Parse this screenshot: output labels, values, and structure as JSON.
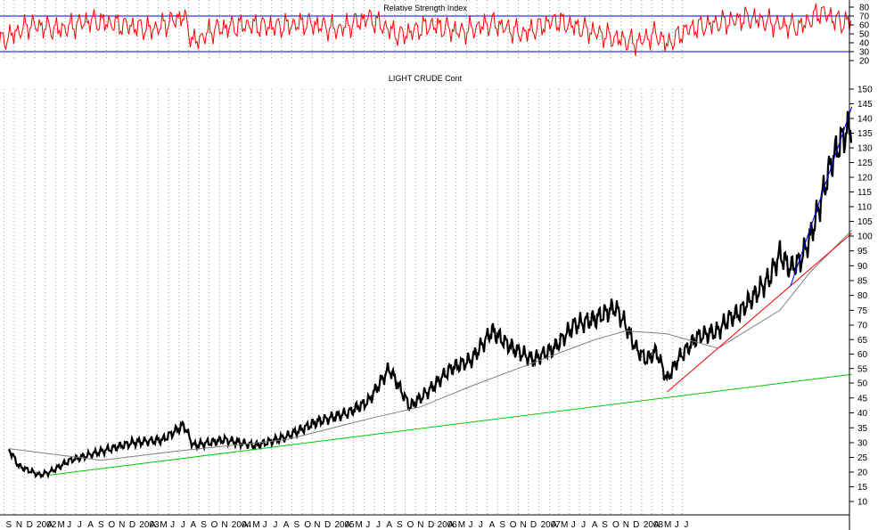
{
  "chart_data": [
    {
      "type": "line",
      "title": "Relative Strength Index",
      "ylim": [
        20,
        88
      ],
      "y_ticks": [
        20,
        30,
        40,
        50,
        60,
        70,
        80
      ],
      "reference_lines": [
        70,
        30
      ],
      "series": [
        {
          "color": "#ff0000",
          "x": [
            "2001-08",
            "2001-11",
            "2002-02",
            "2002-05",
            "2002-08",
            "2002-11",
            "2003-02",
            "2003-03",
            "2003-05",
            "2003-08",
            "2003-11",
            "2004-02",
            "2004-05",
            "2004-08",
            "2004-11",
            "2005-02",
            "2005-05",
            "2005-08",
            "2005-11",
            "2006-02",
            "2006-05",
            "2006-08",
            "2006-10",
            "2006-12",
            "2007-01",
            "2007-03",
            "2007-06",
            "2007-09",
            "2007-12",
            "2008-02",
            "2008-04",
            "2008-06",
            "2008-07"
          ],
          "values": [
            40,
            60,
            55,
            65,
            60,
            55,
            70,
            40,
            55,
            60,
            58,
            62,
            55,
            68,
            48,
            60,
            52,
            62,
            50,
            65,
            55,
            45,
            40,
            50,
            38,
            55,
            62,
            68,
            60,
            58,
            75,
            62,
            65
          ]
        }
      ]
    },
    {
      "type": "line",
      "title": "LIGHT CRUDE Cont",
      "ylim": [
        5,
        155
      ],
      "y_ticks": [
        10,
        15,
        20,
        25,
        30,
        35,
        40,
        45,
        50,
        55,
        60,
        65,
        70,
        75,
        80,
        85,
        90,
        95,
        100,
        105,
        110,
        115,
        120,
        125,
        130,
        135,
        140,
        145,
        150
      ],
      "x_tick_labels": [
        "S",
        "N",
        "D",
        "2002",
        "A",
        "M",
        "J",
        "J",
        "A",
        "S",
        "O",
        "N",
        "D",
        "2003",
        "A",
        "M",
        "J",
        "J",
        "A",
        "S",
        "O",
        "N",
        "2004",
        "A",
        "M",
        "J",
        "J",
        "A",
        "S",
        "O",
        "N",
        "D",
        "2005",
        "A",
        "M",
        "J",
        "J",
        "A",
        "S",
        "O",
        "N",
        "D",
        "2006",
        "A",
        "M",
        "J",
        "J",
        "A",
        "S",
        "O",
        "N",
        "D",
        "2007",
        "A",
        "M",
        "J",
        "J",
        "A",
        "S",
        "O",
        "N",
        "D",
        "2008",
        "A",
        "M",
        "J",
        "J"
      ],
      "grid": true,
      "series": [
        {
          "color": "#000000",
          "x": [
            "2001-09",
            "2001-10",
            "2001-12",
            "2002-01",
            "2002-03",
            "2002-06",
            "2002-09",
            "2002-12",
            "2003-02",
            "2003-03",
            "2003-06",
            "2003-09",
            "2003-12",
            "2004-03",
            "2004-06",
            "2004-08",
            "2004-10",
            "2004-12",
            "2005-02",
            "2005-04",
            "2005-06",
            "2005-08",
            "2005-10",
            "2005-12",
            "2006-02",
            "2006-04",
            "2006-06",
            "2006-08",
            "2006-09",
            "2006-10",
            "2006-11",
            "2006-12",
            "2007-01",
            "2007-02",
            "2007-04",
            "2007-06",
            "2007-07",
            "2007-08",
            "2007-09",
            "2007-11",
            "2007-12",
            "2008-01",
            "2008-02",
            "2008-03",
            "2008-04",
            "2008-05",
            "2008-06",
            "2008-07"
          ],
          "values": [
            28,
            22,
            19,
            20,
            24,
            27,
            30,
            31,
            36,
            29,
            31,
            29,
            32,
            37,
            40,
            44,
            55,
            42,
            48,
            55,
            58,
            68,
            62,
            58,
            62,
            70,
            72,
            76,
            70,
            62,
            58,
            61,
            51,
            58,
            66,
            68,
            72,
            74,
            78,
            86,
            94,
            89,
            92,
            100,
            112,
            125,
            133,
            138
          ]
        },
        {
          "color": "#808080",
          "x": [
            "2001-09",
            "2002-06",
            "2003-01",
            "2003-12",
            "2004-08",
            "2005-01",
            "2005-06",
            "2005-12",
            "2006-06",
            "2006-09",
            "2007-01",
            "2007-06",
            "2007-12",
            "2008-03",
            "2008-07"
          ],
          "values": [
            28,
            24,
            27,
            31,
            38,
            42,
            49,
            57,
            65,
            68,
            67,
            62,
            75,
            88,
            102
          ]
        },
        {
          "color": "#00cc00",
          "x": [
            "2002-01",
            "2008-07"
          ],
          "values": [
            19,
            53
          ]
        },
        {
          "color": "#ff0000",
          "x": [
            "2007-01",
            "2008-07"
          ],
          "values": [
            47,
            101
          ]
        },
        {
          "color": "#0000ff",
          "x": [
            "2008-01",
            "2008-07"
          ],
          "values": [
            83,
            144
          ]
        }
      ]
    }
  ],
  "colors": {
    "price": "#000000",
    "moving_average": "#808080",
    "rsi": "#ff0000",
    "rsi_bands": "#0000ff",
    "long_trend": "#00cc00",
    "mid_trend": "#ff0000",
    "channel": "#0000ff",
    "grid": "#9a9a9a"
  }
}
